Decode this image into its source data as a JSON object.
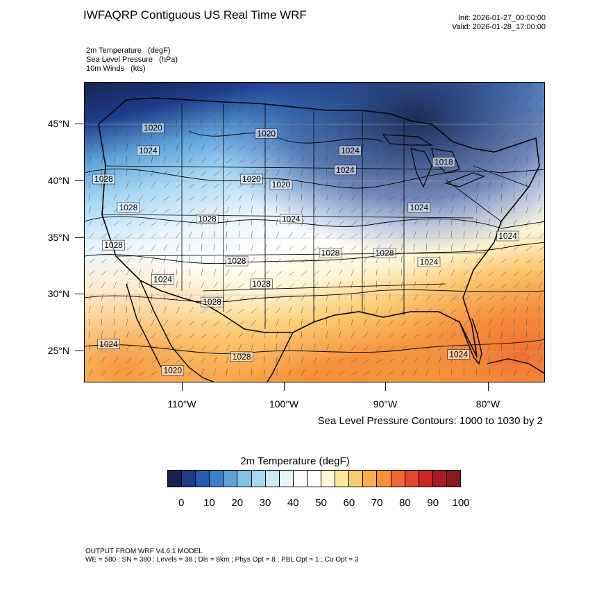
{
  "header": {
    "title": "IWFAQRP Contiguous US Real Time WRF",
    "init": "Init: 2026-01-27_00:00:00",
    "valid": "Valid: 2026-01-28_17:00:00"
  },
  "variables": [
    "2m Temperature   (degF)",
    "Sea Level Pressure   (hPa)",
    "10m Winds   (kts)"
  ],
  "map": {
    "lat_labels": [
      "45°N",
      "40°N",
      "35°N",
      "30°N",
      "25°N"
    ],
    "lon_labels": [
      "110°W",
      "100°W",
      "90°W",
      "80°W"
    ],
    "isobar_labels": [
      {
        "text": "1020",
        "lon": -113,
        "lat": 44.5
      },
      {
        "text": "1020",
        "lon": -101.5,
        "lat": 44
      },
      {
        "text": "1024",
        "lon": -113.5,
        "lat": 42.5
      },
      {
        "text": "1024",
        "lon": -93,
        "lat": 42.5
      },
      {
        "text": "1024",
        "lon": -93.5,
        "lat": 40.8
      },
      {
        "text": "1018",
        "lon": -83.5,
        "lat": 41.5
      },
      {
        "text": "1028",
        "lon": -118,
        "lat": 40
      },
      {
        "text": "1020",
        "lon": -103,
        "lat": 40
      },
      {
        "text": "1020",
        "lon": -100,
        "lat": 39.5
      },
      {
        "text": "1028",
        "lon": -115.5,
        "lat": 37.5
      },
      {
        "text": "1024",
        "lon": -86,
        "lat": 37.5
      },
      {
        "text": "1024",
        "lon": -99,
        "lat": 36.5
      },
      {
        "text": "1028",
        "lon": -107.5,
        "lat": 36.5
      },
      {
        "text": "1024",
        "lon": -77,
        "lat": 35
      },
      {
        "text": "1028",
        "lon": -117,
        "lat": 34.2
      },
      {
        "text": "1028",
        "lon": -95,
        "lat": 33.5
      },
      {
        "text": "1028",
        "lon": -89.5,
        "lat": 33.5
      },
      {
        "text": "1024",
        "lon": -85,
        "lat": 32.7
      },
      {
        "text": "1028",
        "lon": -104.5,
        "lat": 32.8
      },
      {
        "text": "1024",
        "lon": -112,
        "lat": 31.2
      },
      {
        "text": "1028",
        "lon": -102,
        "lat": 30.8
      },
      {
        "text": "1028",
        "lon": -107,
        "lat": 29.2
      },
      {
        "text": "1024",
        "lon": -117.5,
        "lat": 25.5
      },
      {
        "text": "1024",
        "lon": -82,
        "lat": 24.6
      },
      {
        "text": "1028",
        "lon": -104,
        "lat": 24.4
      },
      {
        "text": "1020",
        "lon": -111,
        "lat": 23.2
      }
    ]
  },
  "contour_note": "Sea Level Pressure Contours: 1000 to 1030 by 2",
  "colorbar": {
    "title": "2m Temperature  (degF)",
    "colors": [
      "#16234f",
      "#1d3d8c",
      "#2a5ab0",
      "#3d7fc6",
      "#5ea3d9",
      "#86c1e8",
      "#a9d8f4",
      "#c9e8f8",
      "#e8f5fc",
      "#ffffff",
      "#ffffff",
      "#fff6d6",
      "#fde6a2",
      "#fccc72",
      "#f9b04b",
      "#f6923a",
      "#ef6b31",
      "#e3472c",
      "#cb2528",
      "#a81b23",
      "#8a1a1e"
    ],
    "labels": [
      "0",
      "10",
      "20",
      "30",
      "40",
      "50",
      "60",
      "70",
      "80",
      "90",
      "100"
    ]
  },
  "footer": {
    "line1": "OUTPUT FROM WRF V4.6.1 MODEL",
    "line2": "WE = 580 ; SN = 380 ; Levels = 38 ; Dis = 8km ; Phys Opt = 8 ; PBL Opt = 1 ; Cu Opt = 3"
  }
}
